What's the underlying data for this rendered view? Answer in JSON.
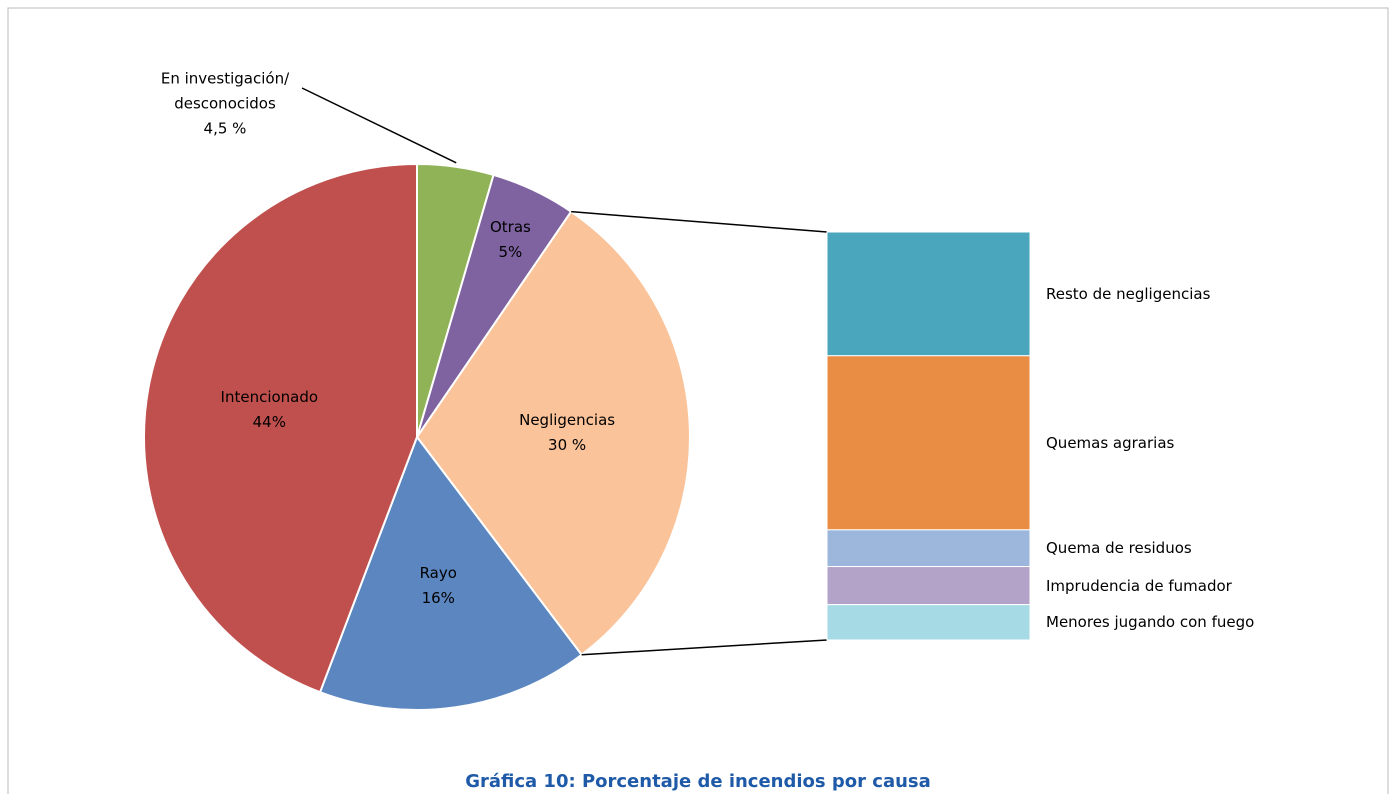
{
  "chart_data": {
    "type": "pie-of-bar",
    "title": "Gráfica 10: Porcentaje de incendios por causa",
    "categories": [
      "En investigación/\ndesconocidos",
      "Otras",
      "Negligencias",
      "Rayo",
      "Intencionado"
    ],
    "values": [
      4.5,
      5,
      30,
      16,
      44
    ],
    "value_labels": [
      "4,5 %",
      "5%",
      "30 %",
      "16%",
      "44%"
    ],
    "colors": [
      "#8fb356",
      "#7e63a0",
      "#fac39a",
      "#5b86c0",
      "#c0504d"
    ],
    "breakdown": {
      "categories": [
        "Resto de negligencias",
        "Quemas agrarias",
        "Quema de residuos",
        "Imprudencia de fumador",
        "Menores jugando con fuego"
      ],
      "values": [
        9.1,
        12.8,
        2.7,
        2.8,
        2.6
      ],
      "colors": [
        "#4aa6bd",
        "#e98d44",
        "#9cb6dc",
        "#b4a3c9",
        "#a6dbe6"
      ]
    }
  }
}
